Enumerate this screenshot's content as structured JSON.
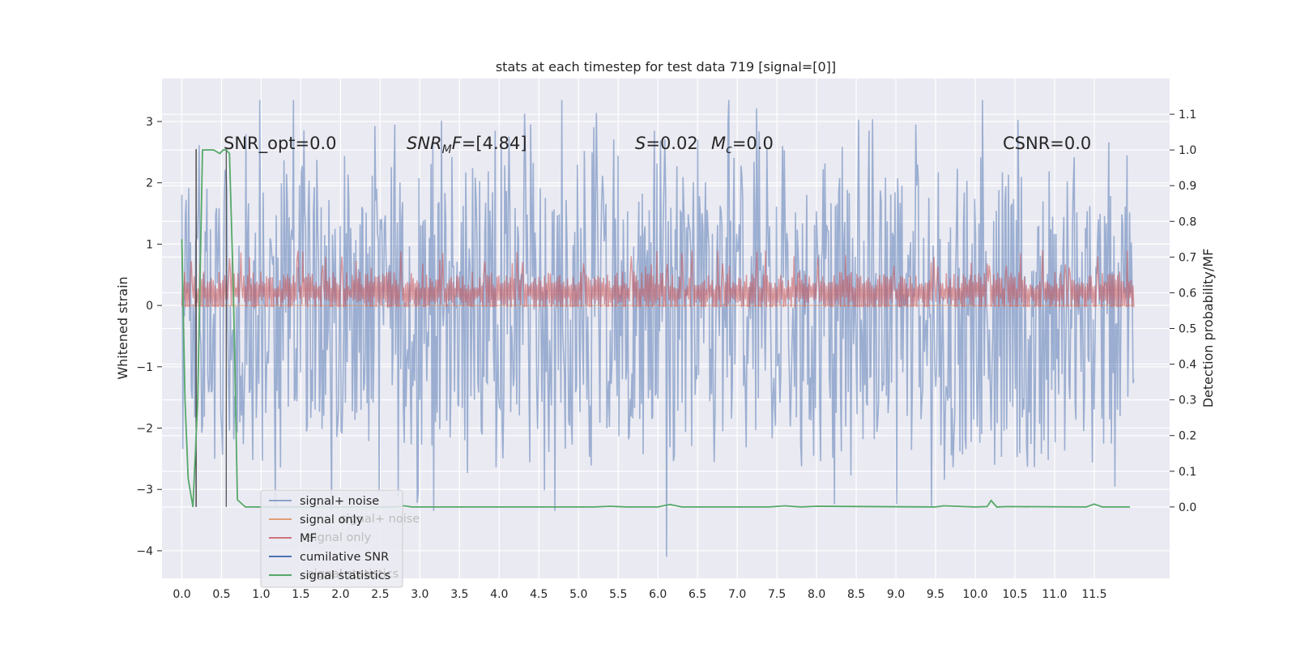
{
  "chart_data": {
    "type": "line",
    "title": "stats at each timestep for test data 719 [signal=[0]]",
    "xlabel": "",
    "ylabel": "Whitened strain",
    "ylabel_right": "Detection probability/MF",
    "xlim": [
      -0.25,
      12.45
    ],
    "ylim": [
      -4.45,
      3.7
    ],
    "ylim_right": [
      -0.2,
      1.2
    ],
    "x_ticks": [
      "0.0",
      "0.5",
      "1.0",
      "1.5",
      "2.0",
      "2.5",
      "3.0",
      "3.5",
      "4.0",
      "4.5",
      "5.0",
      "5.5",
      "6.0",
      "6.5",
      "7.0",
      "7.5",
      "8.0",
      "8.5",
      "9.0",
      "9.5",
      "10.0",
      "10.5",
      "11.0",
      "11.5"
    ],
    "y_ticks": [
      "3",
      "2",
      "1",
      "0",
      "−1",
      "−2",
      "−3",
      "−4"
    ],
    "y_ticks_right": [
      "1.1",
      "1.0",
      "0.9",
      "0.8",
      "0.7",
      "0.6",
      "0.5",
      "0.4",
      "0.3",
      "0.2",
      "0.1",
      "0.0"
    ],
    "grid": true,
    "legend_position": "lower-left",
    "annotations": {
      "snr_opt": "SNR_opt=0.0",
      "snr_mf_base": "SNR",
      "snr_mf_sub": "M",
      "snr_mf_rest": "F=[4.84]",
      "s_base": "S",
      "s_rest": "=0.02",
      "mc_base": "M",
      "mc_sub": "c",
      "mc_rest": "=0.0",
      "csnr": "CSNR=0.0"
    },
    "series": [
      {
        "name": "signal+ noise",
        "color": "#4c72b0",
        "axis": "left",
        "x_range": [
          0.0,
          12.0
        ],
        "envelope": [
          -2.2,
          2.2
        ],
        "min": -4.1,
        "max": 3.35
      },
      {
        "name": "signal only",
        "color": "#dd8452",
        "axis": "left",
        "values": [
          0,
          0
        ]
      },
      {
        "name": "MF",
        "color": "#c44e52",
        "axis": "right",
        "x_range": [
          0.0,
          12.0
        ],
        "baseline": 0.6,
        "envelope": [
          0.56,
          0.68
        ],
        "max": 0.73
      },
      {
        "name": "cumilative SNR",
        "color": "#4c72b0",
        "axis": "left",
        "values": []
      },
      {
        "name": "signal statistics",
        "color": "#55a868",
        "axis": "right",
        "x": [
          0.0,
          0.04,
          0.08,
          0.14,
          0.2,
          0.26,
          0.32,
          0.4,
          0.48,
          0.52,
          0.56,
          0.6,
          0.65,
          0.7,
          0.8,
          1.0,
          2.7,
          2.8,
          2.9,
          5.2,
          5.4,
          5.6,
          6.0,
          6.15,
          6.3,
          7.4,
          7.6,
          7.8,
          8.0,
          9.5,
          9.6,
          10.0,
          10.15,
          10.2,
          10.27,
          10.4,
          11.4,
          11.5,
          11.6,
          11.95
        ],
        "values": [
          0.75,
          0.3,
          0.08,
          0.0,
          0.3,
          1.0,
          1.0,
          1.0,
          0.99,
          1.0,
          1.0,
          0.99,
          0.6,
          0.02,
          0.0,
          0.0,
          0.0,
          0.003,
          0.0,
          0.0,
          0.002,
          0.0,
          0.0,
          0.007,
          0.0,
          0.0,
          0.003,
          0.0,
          0.002,
          0.0,
          0.003,
          0.0,
          0.001,
          0.018,
          0.0,
          0.001,
          0.0,
          0.008,
          0.0,
          0.0
        ]
      }
    ],
    "markers": [
      {
        "name": "black-marker",
        "x": 0.18,
        "color": "#333333"
      },
      {
        "name": "gray-marker",
        "x": 0.56,
        "color": "#555555"
      }
    ],
    "legend_ghost": [
      "signal+ noise",
      "signal only",
      "signal statistics"
    ]
  }
}
